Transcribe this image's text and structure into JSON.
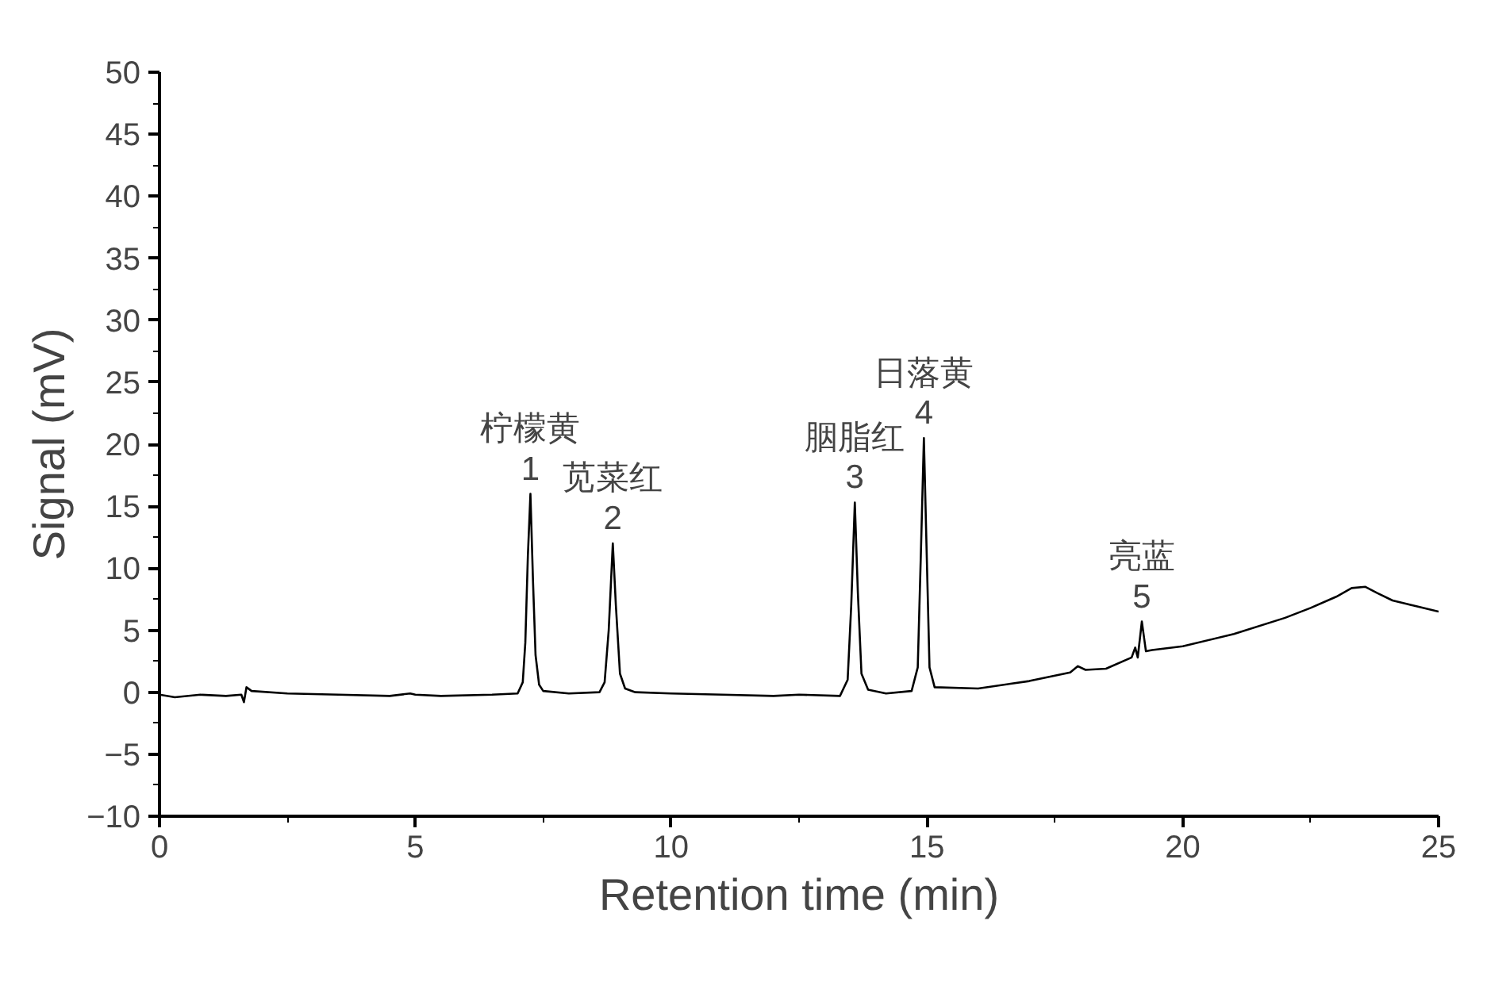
{
  "chart_data": {
    "type": "line",
    "xlabel": "Retention time (min)",
    "ylabel": "Signal (mV)",
    "xlim": [
      0,
      25
    ],
    "ylim": [
      -10,
      50
    ],
    "xticks": [
      0,
      5,
      10,
      15,
      20,
      25
    ],
    "yticks": [
      -10,
      -5,
      0,
      5,
      10,
      15,
      20,
      25,
      30,
      35,
      40,
      45,
      50
    ],
    "grid": false,
    "marker": "none",
    "line_style": "solid",
    "series": [
      {
        "color": "#000000",
        "x": [
          0,
          0.3,
          0.8,
          1.3,
          1.6,
          1.65,
          1.7,
          1.8,
          2.5,
          3.5,
          4.5,
          4.9,
          5.0,
          5.5,
          6.5,
          7.0,
          7.1,
          7.15,
          7.2,
          7.25,
          7.3,
          7.35,
          7.42,
          7.5,
          8.0,
          8.6,
          8.7,
          8.78,
          8.86,
          8.92,
          9.0,
          9.1,
          9.3,
          10,
          11,
          12,
          12.5,
          13.3,
          13.45,
          13.52,
          13.59,
          13.65,
          13.72,
          13.85,
          14.2,
          14.7,
          14.82,
          14.88,
          14.94,
          14.99,
          15.05,
          15.15,
          16,
          17,
          17.8,
          17.95,
          18.1,
          18.5,
          19.0,
          19.07,
          19.12,
          19.2,
          19.28,
          19.4,
          20,
          21,
          22,
          22.5,
          23,
          23.3,
          23.57,
          23.8,
          24.1,
          24.5,
          25
        ],
        "values": [
          -0.2,
          -0.4,
          -0.2,
          -0.3,
          -0.2,
          -0.8,
          0.4,
          0.1,
          -0.1,
          -0.2,
          -0.3,
          -0.1,
          -0.2,
          -0.3,
          -0.2,
          -0.1,
          0.8,
          4,
          11,
          16.0,
          9,
          3,
          0.6,
          0.1,
          -0.1,
          0,
          0.8,
          5,
          12.0,
          7,
          1.5,
          0.3,
          0,
          -0.1,
          -0.2,
          -0.3,
          -0.2,
          -0.3,
          1,
          7,
          15.3,
          8,
          1.5,
          0.2,
          -0.1,
          0.1,
          2,
          11,
          20.5,
          12,
          2,
          0.4,
          0.3,
          0.9,
          1.6,
          2.1,
          1.8,
          1.9,
          2.8,
          3.6,
          2.8,
          5.7,
          3.3,
          3.4,
          3.7,
          4.7,
          6.0,
          6.8,
          7.7,
          8.4,
          8.5,
          8.0,
          7.4,
          7.0,
          6.5
        ]
      }
    ],
    "annotations": [
      {
        "text": "柠檬黄\n1",
        "x": 7.25,
        "y": 16.0
      },
      {
        "text": "苋菜红\n2",
        "x": 8.86,
        "y": 12.0
      },
      {
        "text": "胭脂红\n3",
        "x": 13.59,
        "y": 15.3
      },
      {
        "text": "日落黄\n4",
        "x": 14.94,
        "y": 20.5
      },
      {
        "text": "亮蓝\n5",
        "x": 19.2,
        "y": 5.7
      }
    ]
  }
}
